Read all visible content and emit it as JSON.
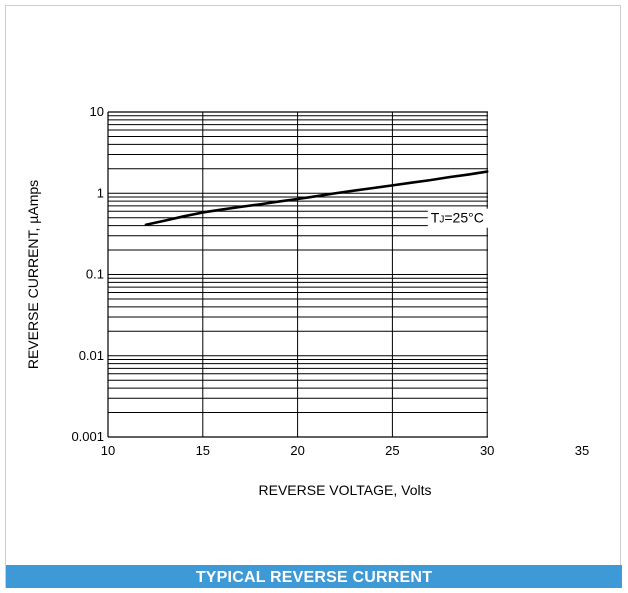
{
  "chart_data": {
    "type": "line",
    "xlabel": "REVERSE VOLTAGE, Volts",
    "ylabel": "REVERSE CURRENT, µAmps",
    "xlim": [
      10,
      35
    ],
    "ylim": [
      0.001,
      10
    ],
    "y_scale": "log",
    "grid": true,
    "x_ticks": [
      "10",
      "15",
      "20",
      "25",
      "30",
      "35"
    ],
    "y_ticks": [
      "0.001",
      "0.01",
      "0.1",
      "1",
      "10"
    ],
    "annotation": {
      "parts": [
        "T",
        "J",
        "=25°C"
      ],
      "x": 27.5,
      "y": 0.5
    },
    "series": [
      {
        "x": [
          12,
          13,
          14,
          15,
          16,
          17,
          18,
          19,
          20,
          21,
          22,
          23,
          24,
          25,
          26,
          27,
          28,
          29,
          30
        ],
        "y": [
          0.41,
          0.46,
          0.52,
          0.58,
          0.63,
          0.68,
          0.73,
          0.79,
          0.85,
          0.92,
          1.0,
          1.08,
          1.16,
          1.25,
          1.35,
          1.45,
          1.58,
          1.7,
          1.85
        ]
      }
    ]
  },
  "caption": "TYPICAL REVERSE CURRENT",
  "colors": {
    "caption_bar": "#3d9ad6",
    "line": "#000000",
    "grid": "#000000"
  }
}
